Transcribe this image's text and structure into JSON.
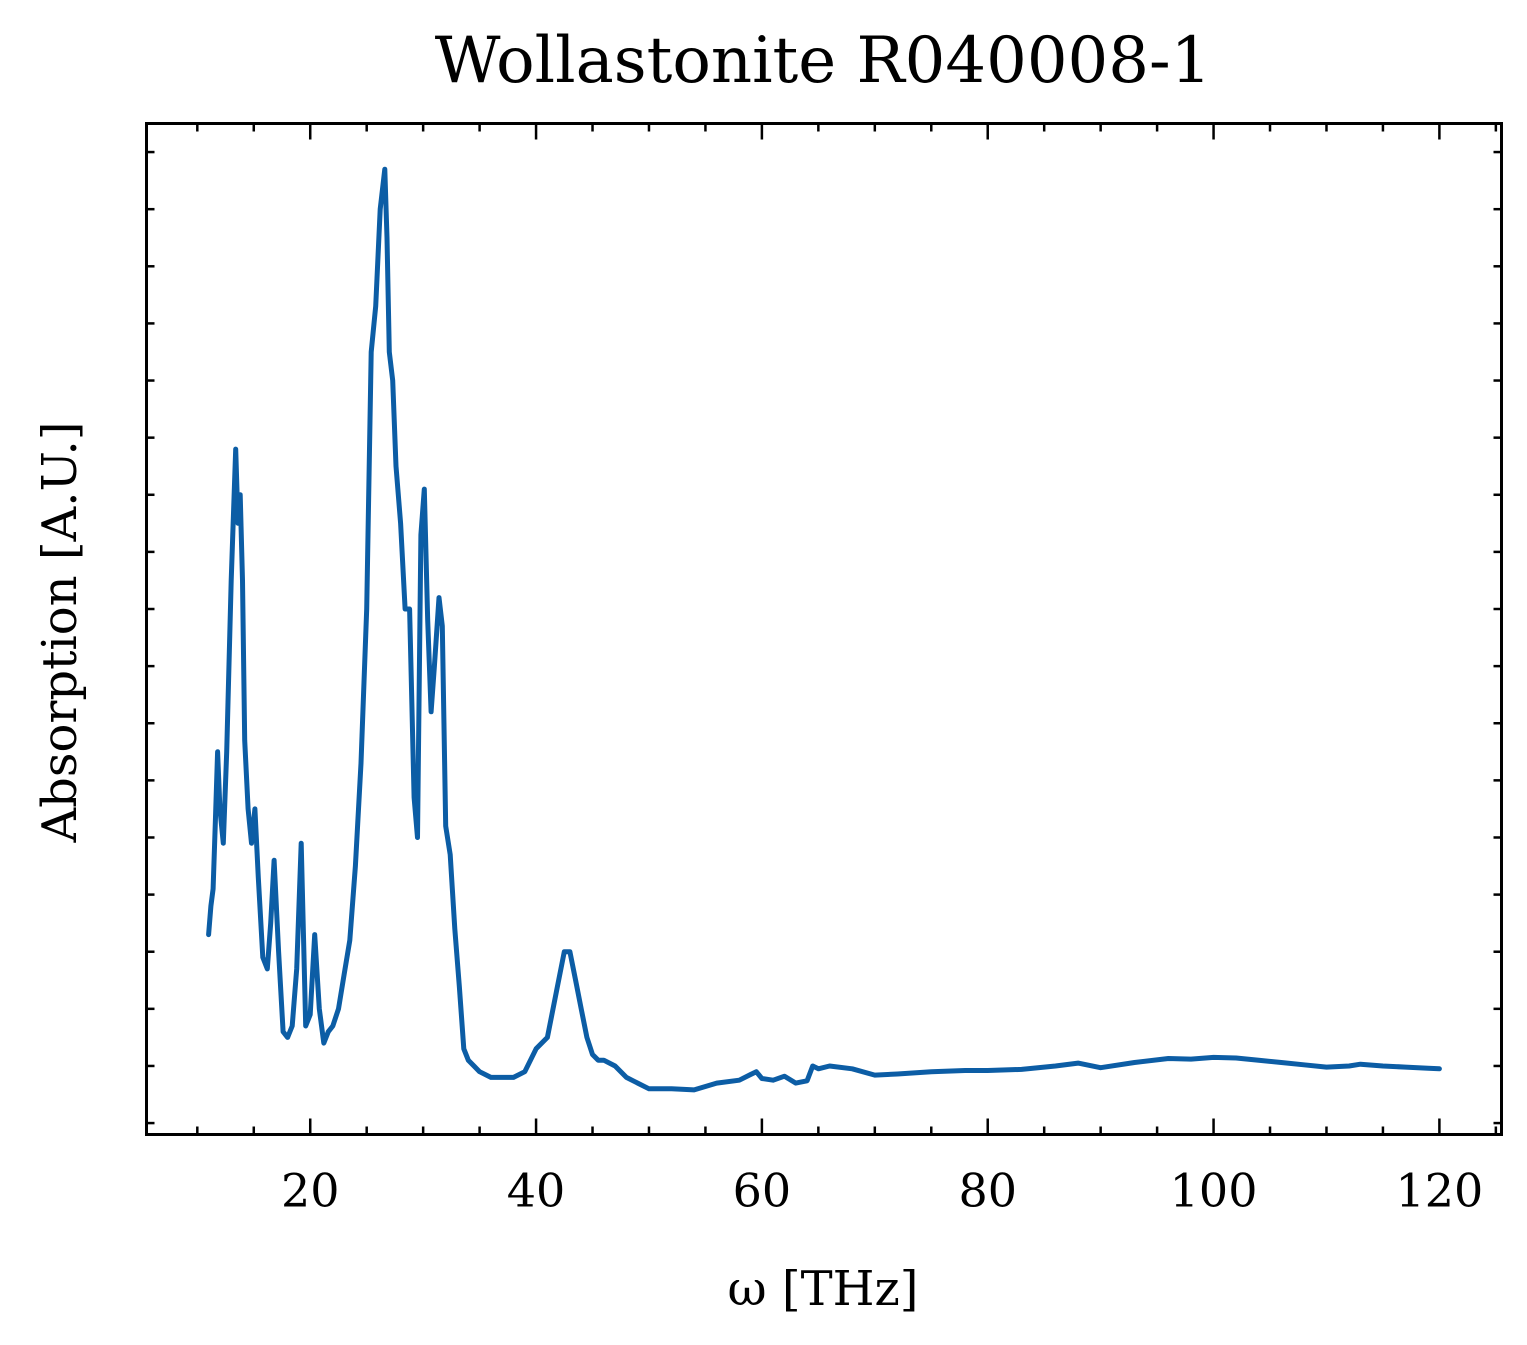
{
  "chart_data": {
    "type": "line",
    "title": "Wollastonite R040008-1",
    "xlabel": "ω [THz]",
    "ylabel": "Absorption [A.U.]",
    "xlim": [
      5.5,
      125.5
    ],
    "ylim": [
      -0.07,
      1.7
    ],
    "x_ticks": [
      20,
      40,
      60,
      80,
      100,
      120
    ],
    "y_ticks": [
      0,
      0.5,
      1.0,
      1.5
    ],
    "y_tick_labels_shown": false,
    "grid": false,
    "series": [
      {
        "color": "#0C5DA5",
        "x": [
          11.0,
          11.2,
          11.4,
          11.6,
          11.8,
          12.0,
          12.3,
          12.6,
          13.0,
          13.4,
          13.6,
          13.8,
          14.0,
          14.2,
          14.5,
          14.8,
          15.1,
          15.4,
          15.8,
          16.2,
          16.5,
          16.8,
          17.2,
          17.6,
          18.0,
          18.4,
          18.8,
          19.2,
          19.6,
          20.0,
          20.4,
          20.8,
          21.2,
          21.6,
          22.0,
          22.5,
          23.0,
          23.5,
          24.0,
          24.5,
          25.0,
          25.4,
          25.8,
          26.2,
          26.6,
          26.8,
          27.0,
          27.3,
          27.6,
          28.0,
          28.4,
          28.8,
          29.2,
          29.5,
          29.8,
          30.1,
          30.4,
          30.7,
          31.0,
          31.4,
          31.7,
          32.0,
          32.4,
          32.8,
          33.2,
          33.6,
          34.0,
          34.5,
          35.0,
          36.0,
          37.0,
          38.0,
          39.0,
          40.0,
          41.0,
          41.8,
          42.5,
          43.0,
          43.5,
          44.0,
          44.5,
          45.0,
          45.5,
          46.0,
          47.0,
          48.0,
          49.0,
          50.0,
          52.0,
          54.0,
          56.0,
          58.0,
          59.0,
          59.5,
          60.0,
          61.0,
          62.0,
          63.0,
          64.0,
          64.5,
          65.0,
          66.0,
          68.0,
          70.0,
          72.0,
          75.0,
          78.0,
          80.0,
          83.0,
          86.0,
          88.0,
          90.0,
          93.0,
          96.0,
          98.0,
          100.0,
          102.0,
          104.0,
          106.0,
          108.0,
          110.0,
          112.0,
          113.0,
          115.0,
          117.0,
          119.0,
          120.0
        ],
        "y": [
          0.28,
          0.33,
          0.36,
          0.48,
          0.6,
          0.5,
          0.44,
          0.6,
          0.9,
          1.13,
          1.0,
          1.05,
          0.9,
          0.62,
          0.5,
          0.44,
          0.5,
          0.38,
          0.24,
          0.22,
          0.3,
          0.41,
          0.25,
          0.11,
          0.1,
          0.12,
          0.22,
          0.44,
          0.12,
          0.14,
          0.28,
          0.15,
          0.09,
          0.11,
          0.12,
          0.15,
          0.21,
          0.27,
          0.4,
          0.58,
          0.85,
          1.3,
          1.38,
          1.55,
          1.62,
          1.5,
          1.3,
          1.25,
          1.1,
          1.0,
          0.85,
          0.85,
          0.52,
          0.45,
          0.98,
          1.06,
          0.83,
          0.67,
          0.75,
          0.87,
          0.82,
          0.47,
          0.42,
          0.29,
          0.19,
          0.08,
          0.06,
          0.05,
          0.04,
          0.03,
          0.03,
          0.03,
          0.04,
          0.08,
          0.1,
          0.18,
          0.25,
          0.25,
          0.2,
          0.15,
          0.1,
          0.07,
          0.06,
          0.06,
          0.05,
          0.03,
          0.02,
          0.01,
          0.01,
          0.008,
          0.02,
          0.025,
          0.035,
          0.04,
          0.028,
          0.025,
          0.032,
          0.02,
          0.024,
          0.05,
          0.045,
          0.05,
          0.045,
          0.034,
          0.036,
          0.04,
          0.042,
          0.042,
          0.044,
          0.05,
          0.055,
          0.047,
          0.056,
          0.063,
          0.062,
          0.065,
          0.064,
          0.06,
          0.056,
          0.052,
          0.048,
          0.05,
          0.053,
          0.05,
          0.048,
          0.046,
          0.045
        ]
      }
    ]
  }
}
